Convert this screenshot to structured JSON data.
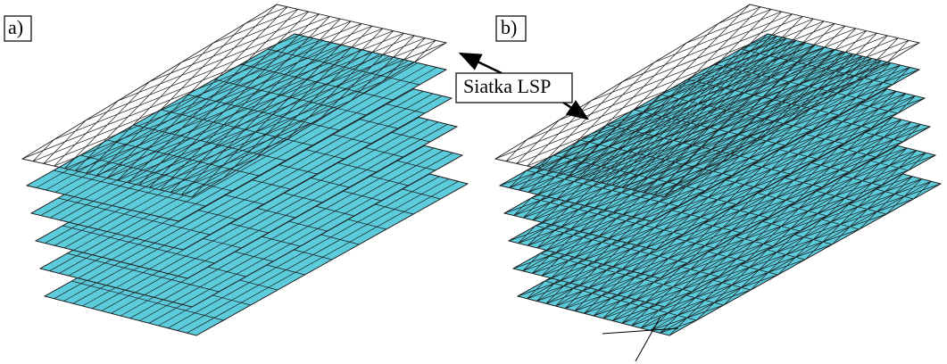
{
  "labels": {
    "a": "a)",
    "b": "b)"
  },
  "callout": "Siatka LSP"
}
